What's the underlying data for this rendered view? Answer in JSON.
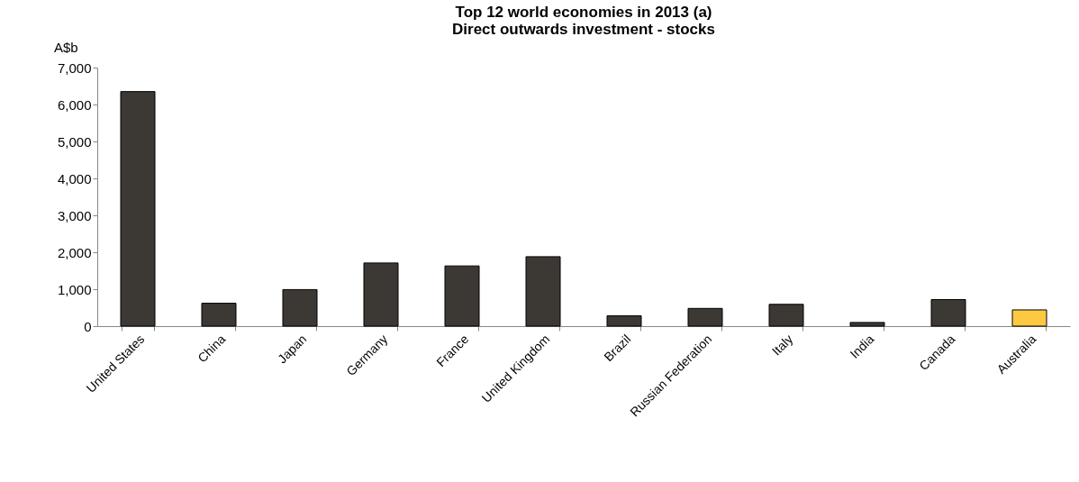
{
  "chart_data": {
    "type": "bar",
    "title": [
      "Top 12 world economies in 2013 (a)",
      "Direct outwards investment - stocks"
    ],
    "ylabel": "A$b",
    "categories": [
      "United States",
      "China",
      "Japan",
      "Germany",
      "France",
      "United Kingdom",
      "Brazil",
      "Russian Federation",
      "Italy",
      "India",
      "Canada",
      "Australia"
    ],
    "values": [
      6350,
      620,
      990,
      1710,
      1630,
      1880,
      280,
      480,
      590,
      100,
      720,
      440
    ],
    "colors": [
      "#3c3834",
      "#3c3834",
      "#3c3834",
      "#3c3834",
      "#3c3834",
      "#3c3834",
      "#3c3834",
      "#3c3834",
      "#3c3834",
      "#3c3834",
      "#3c3834",
      "#ffc843"
    ],
    "ylim": [
      0,
      7000
    ],
    "yticks": [
      0,
      {
        "value": 1000,
        "label": "1,000"
      },
      {
        "value": 2000,
        "label": "2,000"
      },
      {
        "value": 3000,
        "label": "3,000"
      },
      {
        "value": 4000,
        "label": "4,000"
      },
      {
        "value": 5000,
        "label": "5,000"
      },
      {
        "value": 6000,
        "label": "6,000"
      },
      {
        "value": 7000,
        "label": "7,000"
      }
    ],
    "grid": false
  }
}
